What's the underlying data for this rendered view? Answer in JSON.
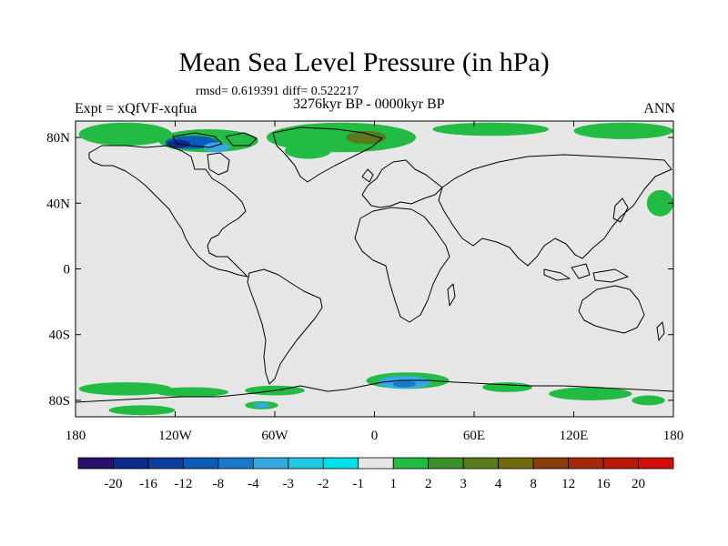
{
  "title": "Mean Sea Level Pressure (in hPa)",
  "stats_line": "rmsd= 0.619391 diff= 0.522217",
  "period_line": "3276kyr BP - 0000kyr BP",
  "experiment_label": "Expt = xQfVF-xqfua",
  "season_label": "ANN",
  "map": {
    "lon_range": [
      -180,
      180
    ],
    "lat_range": [
      -90,
      90
    ],
    "x_ticks": [
      {
        "lon": -180,
        "label": "180"
      },
      {
        "lon": -120,
        "label": "120W"
      },
      {
        "lon": -60,
        "label": "60W"
      },
      {
        "lon": 0,
        "label": "0"
      },
      {
        "lon": 60,
        "label": "60E"
      },
      {
        "lon": 120,
        "label": "120E"
      },
      {
        "lon": 180,
        "label": "180"
      }
    ],
    "y_ticks": [
      {
        "lat": 80,
        "label": "80N"
      },
      {
        "lat": 40,
        "label": "40N"
      },
      {
        "lat": 0,
        "label": "0"
      },
      {
        "lat": -40,
        "label": "40S"
      },
      {
        "lat": -80,
        "label": "80S"
      }
    ],
    "background_color": "#e6e6e6",
    "anomaly_regions": [
      {
        "lon": -150,
        "lat": 82,
        "rlon": 28,
        "rlat": 7,
        "color": "#22bb44"
      },
      {
        "lon": -100,
        "lat": 78,
        "rlon": 30,
        "rlat": 7,
        "color": "#22bb44"
      },
      {
        "lon": -110,
        "lat": 77,
        "rlon": 16,
        "rlat": 4,
        "color": "#0a5cb8"
      },
      {
        "lon": -118,
        "lat": 76,
        "rlon": 7,
        "rlat": 2.5,
        "color": "#0b2a8c"
      },
      {
        "lon": -95,
        "lat": 74,
        "rlon": 8,
        "rlat": 3,
        "color": "#36a9e1"
      },
      {
        "lon": -20,
        "lat": 80,
        "rlon": 45,
        "rlat": 9,
        "color": "#22bb44"
      },
      {
        "lon": -5,
        "lat": 80,
        "rlon": 12,
        "rlat": 4,
        "color": "#5a7a1a"
      },
      {
        "lon": -40,
        "lat": 72,
        "rlon": 14,
        "rlat": 5,
        "color": "#22bb44"
      },
      {
        "lon": 70,
        "lat": 85,
        "rlon": 35,
        "rlat": 4,
        "color": "#22bb44"
      },
      {
        "lon": 150,
        "lat": 84,
        "rlon": 30,
        "rlat": 5,
        "color": "#22bb44"
      },
      {
        "lon": 172,
        "lat": 40,
        "rlon": 8,
        "rlat": 8,
        "color": "#22bb44"
      },
      {
        "lon": -150,
        "lat": -73,
        "rlon": 28,
        "rlat": 4,
        "color": "#22bb44"
      },
      {
        "lon": -110,
        "lat": -75,
        "rlon": 22,
        "rlat": 3,
        "color": "#22bb44"
      },
      {
        "lon": -60,
        "lat": -74,
        "rlon": 18,
        "rlat": 3,
        "color": "#22bb44"
      },
      {
        "lon": -68,
        "lat": -83,
        "rlon": 10,
        "rlat": 2.5,
        "color": "#22bb44"
      },
      {
        "lon": -68,
        "lat": -83,
        "rlon": 5,
        "rlat": 1.5,
        "color": "#36a9e1"
      },
      {
        "lon": 20,
        "lat": -68,
        "rlon": 25,
        "rlat": 5,
        "color": "#22bb44"
      },
      {
        "lon": 18,
        "lat": -69,
        "rlon": 16,
        "rlat": 4,
        "color": "#36a9e1"
      },
      {
        "lon": 18,
        "lat": -70,
        "rlon": 7,
        "rlat": 2,
        "color": "#1a78c8"
      },
      {
        "lon": 80,
        "lat": -72,
        "rlon": 15,
        "rlat": 3,
        "color": "#22bb44"
      },
      {
        "lon": 130,
        "lat": -76,
        "rlon": 25,
        "rlat": 4,
        "color": "#22bb44"
      },
      {
        "lon": 165,
        "lat": -80,
        "rlon": 10,
        "rlat": 3,
        "color": "#22bb44"
      },
      {
        "lon": -140,
        "lat": -86,
        "rlon": 20,
        "rlat": 3,
        "color": "#22bb44"
      }
    ]
  },
  "colorbar": {
    "levels": [
      "-20",
      "-16",
      "-12",
      "-8",
      "-4",
      "-3",
      "-2",
      "-1",
      "1",
      "2",
      "3",
      "4",
      "8",
      "12",
      "16",
      "20"
    ],
    "colors": [
      "#2a0f6b",
      "#0b2a8c",
      "#0f3d9e",
      "#0a5cb8",
      "#1a78c8",
      "#36a9e1",
      "#22c7e0",
      "#00e0e8",
      "#e6e6e6",
      "#22bb44",
      "#3b8f2a",
      "#5a7a1a",
      "#6f6a10",
      "#8a3d0a",
      "#a6280a",
      "#b81a0a",
      "#d10f0f"
    ]
  }
}
